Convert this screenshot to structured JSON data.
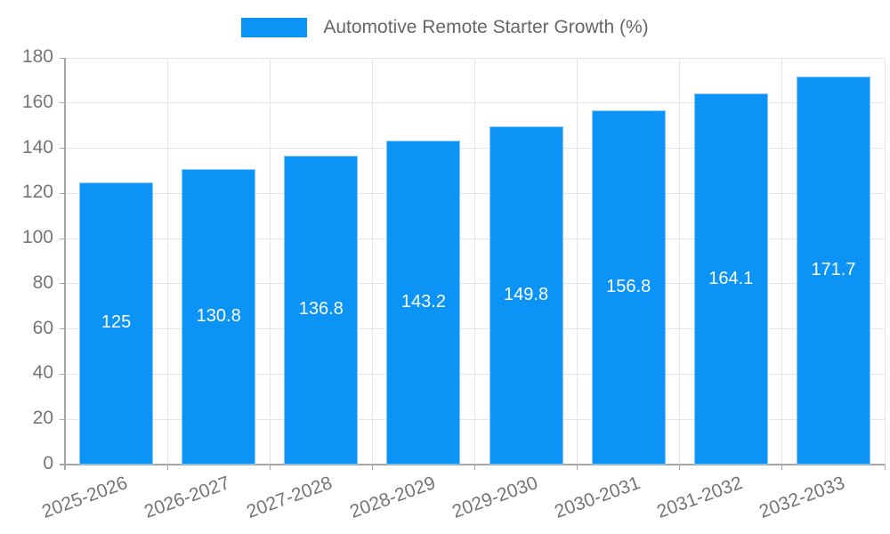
{
  "legend": {
    "label": "Automotive Remote Starter Growth (%)"
  },
  "chart_data": {
    "type": "bar",
    "title": "",
    "series_name": "Automotive Remote Starter Growth (%)",
    "categories": [
      "2025-2026",
      "2026-2027",
      "2027-2028",
      "2028-2029",
      "2029-2030",
      "2030-2031",
      "2031-2032",
      "2032-2033"
    ],
    "values": [
      125,
      130.8,
      136.8,
      143.2,
      149.8,
      156.8,
      164.1,
      171.7
    ],
    "value_labels": [
      "125",
      "130.8",
      "136.8",
      "143.2",
      "149.8",
      "156.8",
      "164.1",
      "171.7"
    ],
    "xlabel": "",
    "ylabel": "",
    "ylim": [
      0,
      180
    ],
    "ytick_step": 20,
    "ytick_labels": [
      "0",
      "20",
      "40",
      "60",
      "80",
      "100",
      "120",
      "140",
      "160",
      "180"
    ],
    "grid": true,
    "legend_position": "top",
    "colors": {
      "bar_fill": "#0b93f5",
      "bar_border": "#85c7f7",
      "grid_line": "#e5e5e5",
      "axis_line": "#a6a6a6",
      "tick_label": "#757575",
      "legend_text": "#666666",
      "value_label": "#ffffff",
      "background": "#ffffff"
    }
  }
}
